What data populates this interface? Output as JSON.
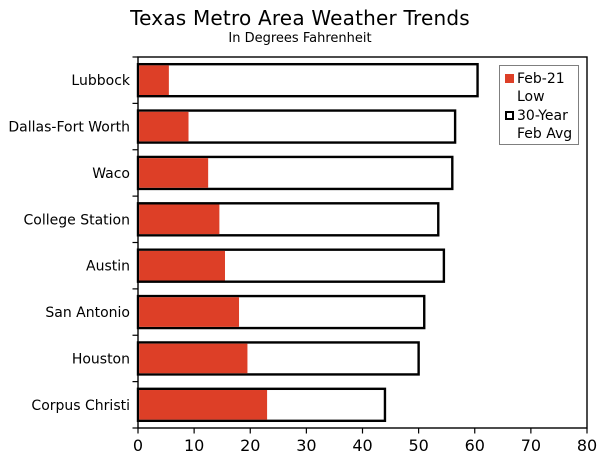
{
  "chart_data": {
    "type": "bar",
    "orientation": "horizontal",
    "title": "Texas Metro Area Weather Trends",
    "subtitle": "In Degrees Fahrenheit",
    "categories": [
      "Lubbock",
      "Dallas-Fort Worth",
      "Waco",
      "College Station",
      "Austin",
      "San Antonio",
      "Houston",
      "Corpus Christi"
    ],
    "series": [
      {
        "name": "Feb-21 Low",
        "color": "#dd3f27",
        "values": [
          5.5,
          9,
          12.5,
          14.5,
          15.5,
          18,
          19.5,
          23
        ]
      },
      {
        "name": "30-Year Feb Avg",
        "color": "#ffffff",
        "values": [
          60.5,
          56.5,
          56,
          53.5,
          54.5,
          51,
          50,
          44
        ]
      }
    ],
    "xlabel": "",
    "ylabel": "",
    "xlim": [
      0,
      80
    ],
    "xticks": [
      0,
      10,
      20,
      30,
      40,
      50,
      60,
      70,
      80
    ],
    "grid": false,
    "legend_position": "top-right",
    "bar_style": "overlaid"
  },
  "legend": {
    "entries": [
      {
        "line1": "Feb-21",
        "line2": "Low"
      },
      {
        "line1": "30-Year",
        "line2": "Feb Avg"
      }
    ]
  },
  "colors": {
    "accent_red": "#dd3f27",
    "bar_fill_avg": "#ffffff",
    "bar_outline": "#000000",
    "text": "#000000",
    "legend_border": "#7f7f7f"
  }
}
